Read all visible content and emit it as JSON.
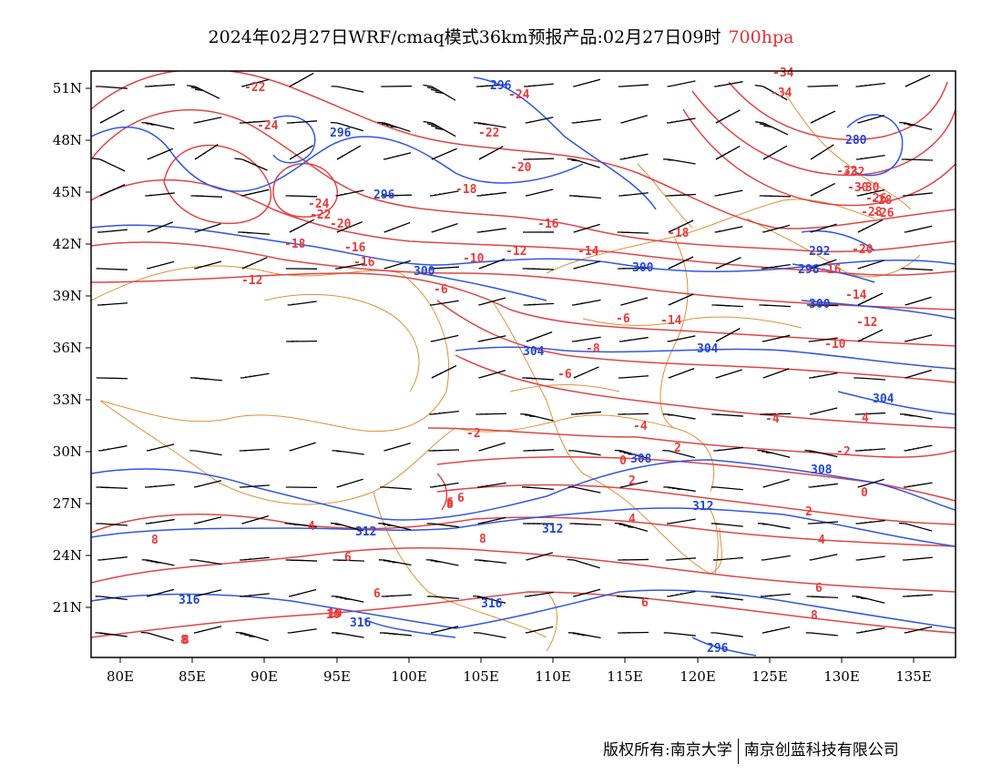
{
  "title": {
    "main": "2024年02月27日WRF/cmaq模式36km预报产品:02月27日09时",
    "level": "700hpa"
  },
  "axes": {
    "lat_labels": [
      "51N",
      "48N",
      "45N",
      "42N",
      "39N",
      "36N",
      "33N",
      "30N",
      "27N",
      "24N",
      "21N"
    ],
    "lon_labels": [
      "80E",
      "85E",
      "90E",
      "95E",
      "100E",
      "105E",
      "110E",
      "115E",
      "120E",
      "125E",
      "130E",
      "135E"
    ]
  },
  "contour_labels": {
    "temperature": [
      "-22",
      "-24",
      "-24",
      "-22",
      "-20",
      "-18",
      "-16",
      "-14",
      "-12",
      "-10",
      "-8",
      "-6",
      "-4",
      "-2",
      "0",
      "2",
      "4",
      "6",
      "8",
      "10",
      "-26",
      "-28",
      "-30",
      "-32",
      "-34",
      "-16",
      "-14",
      "-12",
      "-10",
      "-16",
      "-18",
      "-20",
      "-22",
      "-24",
      "-26",
      "-28",
      "-30",
      "-32",
      "-34",
      "-12",
      "-20",
      "-18",
      "-16",
      "-14",
      "-6",
      "-6",
      "2",
      "4",
      "6",
      "-2",
      "-4",
      "0",
      "2",
      "4",
      "6",
      "8",
      "8",
      "6",
      "4",
      "8",
      "6",
      "8",
      "6",
      "10",
      "8"
    ],
    "height": [
      "296",
      "296",
      "296",
      "300",
      "300",
      "304",
      "304",
      "304",
      "308",
      "308",
      "312",
      "312",
      "312",
      "316",
      "316",
      "316",
      "280",
      "292",
      "296",
      "300",
      "296"
    ]
  },
  "colors": {
    "temperature": "#e04545",
    "height": "#2f55e8",
    "borders": "#e0903a",
    "barbs": "#000000"
  },
  "footer": {
    "owner": "版权所有:南京大学",
    "partner": "南京创蓝科技有限公司"
  }
}
